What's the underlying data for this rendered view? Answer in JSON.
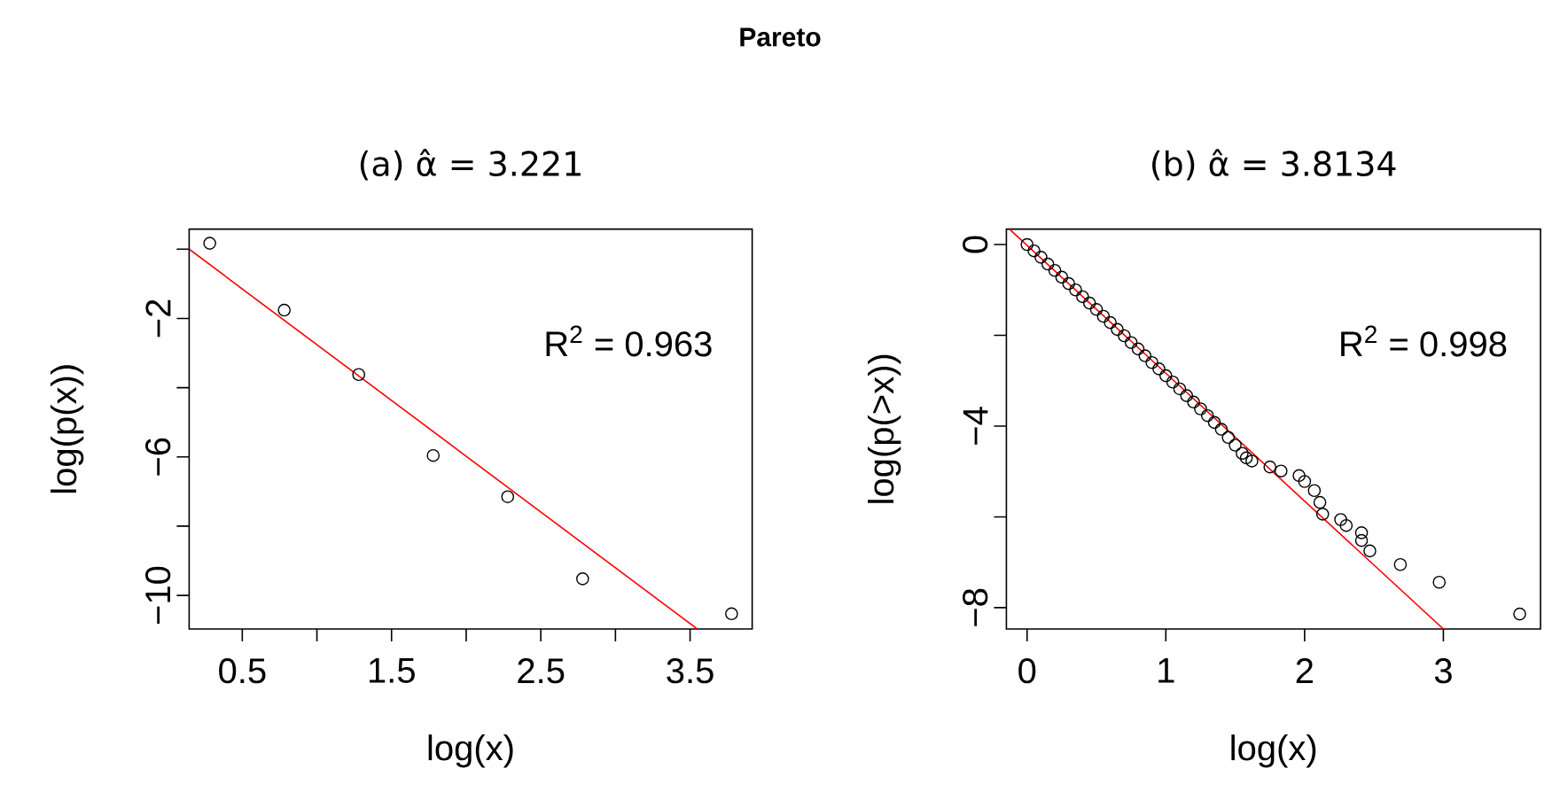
{
  "chart_data": [
    {
      "type": "other",
      "title": "Pareto"
    },
    {
      "type": "scatter",
      "title": "(a) α̂ = 3.221",
      "xlabel": "log(x)",
      "ylabel": "log(p(x))",
      "annotations": [
        "R$^{2}$ = 0.963"
      ],
      "xlim": [
        0.144,
        3.916
      ],
      "ylim": [
        -10.97,
        0.58
      ],
      "xticks": [
        0.5,
        {
          "value": 1.0,
          "label": null
        },
        1.5,
        {
          "value": 2.0,
          "label": null
        },
        2.5,
        {
          "value": 3.0,
          "label": null
        },
        3.5
      ],
      "yticks": [
        {
          "value": 0,
          "label": null
        },
        {
          "value": -2,
          "label": "−2"
        },
        {
          "value": -4,
          "label": null
        },
        {
          "value": -6,
          "label": "−6"
        },
        {
          "value": -8,
          "label": null
        },
        {
          "value": -10,
          "label": "−10"
        }
      ],
      "marker": "circle",
      "series": [
        {
          "type": "scatter",
          "color": "#000000",
          "x": [
            0.282,
            0.781,
            1.28,
            1.779,
            2.278,
            2.78,
            3.778
          ],
          "values": [
            0.17,
            -1.76,
            -3.62,
            -5.96,
            -7.15,
            -9.52,
            -10.53
          ]
        },
        {
          "type": "line",
          "color": "#ff0000",
          "marker": "none",
          "x": [
            0.144,
            3.548
          ],
          "values": [
            0.0,
            -10.97
          ]
        }
      ]
    },
    {
      "type": "scatter",
      "title": "(b) α̂ = 3.8134",
      "xlabel": "log(x)",
      "ylabel": "log(p(>x))",
      "annotations": [
        "R$^{2}$ = 0.998"
      ],
      "xlim": [
        -0.149,
        3.7
      ],
      "ylim": [
        -8.47,
        0.34
      ],
      "xticks": [
        0,
        1,
        2,
        3
      ],
      "yticks": [
        {
          "value": 0,
          "label": "0"
        },
        {
          "value": -2,
          "label": null
        },
        {
          "value": -4,
          "label": "−4"
        },
        {
          "value": -6,
          "label": null
        },
        {
          "value": -8,
          "label": "−8"
        }
      ],
      "marker": "circle",
      "series": [
        {
          "type": "scatter",
          "color": "#000000",
          "x": [
            0,
            0.05,
            0.1,
            0.15,
            0.2,
            0.25,
            0.3,
            0.35,
            0.4,
            0.45,
            0.5,
            0.55,
            0.6,
            0.65,
            0.7,
            0.75,
            0.8,
            0.85,
            0.9,
            0.95,
            1.0,
            1.05,
            1.1,
            1.15,
            1.2,
            1.25,
            1.3,
            1.35,
            1.4,
            1.45,
            1.5,
            1.55,
            1.58,
            1.62,
            1.75,
            1.83,
            1.96,
            2.0,
            2.07,
            2.11,
            2.13,
            2.26,
            2.3,
            2.41,
            2.41,
            2.47,
            2.69,
            2.97,
            3.55
          ],
          "values": [
            0,
            -0.14,
            -0.28,
            -0.43,
            -0.57,
            -0.72,
            -0.86,
            -1.0,
            -1.15,
            -1.29,
            -1.43,
            -1.58,
            -1.72,
            -1.87,
            -2.01,
            -2.16,
            -2.3,
            -2.45,
            -2.6,
            -2.74,
            -2.89,
            -3.03,
            -3.18,
            -3.33,
            -3.47,
            -3.62,
            -3.77,
            -3.92,
            -4.07,
            -4.25,
            -4.42,
            -4.6,
            -4.7,
            -4.77,
            -4.9,
            -4.99,
            -5.09,
            -5.22,
            -5.42,
            -5.68,
            -5.94,
            -6.06,
            -6.19,
            -6.35,
            -6.52,
            -6.75,
            -7.05,
            -7.44,
            -8.14
          ]
        },
        {
          "type": "line",
          "color": "#ff0000",
          "marker": "none",
          "x": [
            -0.127,
            3.0
          ],
          "values": [
            0.34,
            -8.47
          ]
        }
      ]
    }
  ]
}
